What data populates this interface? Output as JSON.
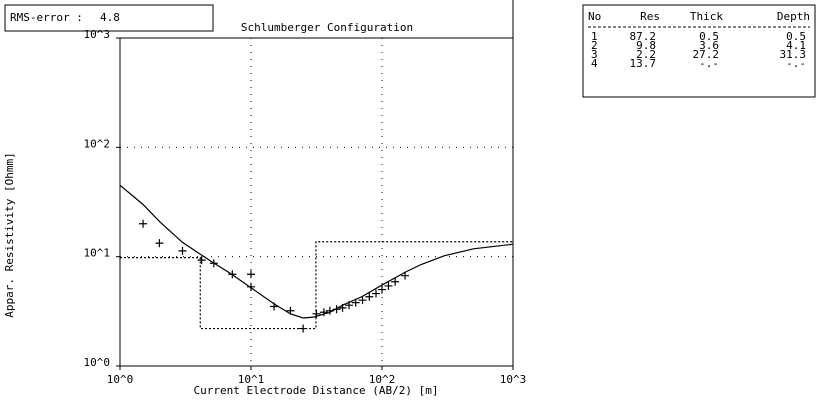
{
  "chart_data": {
    "type": "line",
    "title": "Schlumberger Configuration",
    "rms_label": "RMS-error :",
    "rms_value": 4.8,
    "xlabel": "Current Electrode Distance (AB/2) [m]",
    "ylabel": "Appar. Resistivity [Ohmm]",
    "xscale": "log",
    "yscale": "log",
    "grid": true,
    "xlim": [
      1,
      1000
    ],
    "ylim": [
      1,
      1000
    ],
    "xticks": [
      {
        "value": 1,
        "label": "10^0"
      },
      {
        "value": 10,
        "label": "10^1"
      },
      {
        "value": 100,
        "label": "10^2"
      },
      {
        "value": 1000,
        "label": "10^3"
      }
    ],
    "yticks": [
      {
        "value": 1,
        "label": "10^0"
      },
      {
        "value": 10,
        "label": "10^1"
      },
      {
        "value": 100,
        "label": "10^2"
      },
      {
        "value": 1000,
        "label": "10^3"
      }
    ],
    "series": [
      {
        "style": "solid",
        "color": "#000000",
        "x": [
          1,
          1.5,
          2,
          3,
          5,
          7,
          10,
          15,
          20,
          25,
          30,
          40,
          50,
          70,
          100,
          150,
          200,
          300,
          500,
          1000
        ],
        "values": [
          45,
          30,
          21,
          13.5,
          9,
          7,
          5.2,
          3.7,
          3.0,
          2.75,
          2.8,
          3.1,
          3.6,
          4.3,
          5.5,
          7.2,
          8.5,
          10.2,
          11.8,
          13
        ]
      },
      {
        "style": "dotted",
        "color": "#000000",
        "x": [
          1,
          4.1,
          4.1,
          31.3,
          31.3,
          1000
        ],
        "values": [
          9.8,
          9.8,
          2.2,
          2.2,
          13.7,
          13.7
        ]
      },
      {
        "style": "cross",
        "color": "#000000",
        "x": [
          1.5,
          2,
          3,
          4.2,
          5.2,
          7.2,
          10,
          10,
          15,
          20,
          25,
          31.6,
          36,
          40,
          45,
          50,
          56,
          63,
          71,
          80,
          90,
          100,
          112,
          126,
          150
        ],
        "values": [
          20,
          13.3,
          11.3,
          9.3,
          8.7,
          6.9,
          6.9,
          5.3,
          3.5,
          3.2,
          2.2,
          3.0,
          3.1,
          3.2,
          3.3,
          3.4,
          3.6,
          3.8,
          4.0,
          4.3,
          4.6,
          5.0,
          5.4,
          5.9,
          6.7
        ]
      }
    ]
  },
  "table": {
    "headers": [
      "No",
      "Res",
      "Thick",
      "Depth"
    ],
    "rows": [
      [
        1,
        87.2,
        0.5,
        0.5
      ],
      [
        2,
        9.8,
        3.6,
        4.1
      ],
      [
        3,
        2.2,
        27.2,
        31.3
      ],
      [
        4,
        13.7,
        "-.-",
        "-.-"
      ]
    ]
  }
}
